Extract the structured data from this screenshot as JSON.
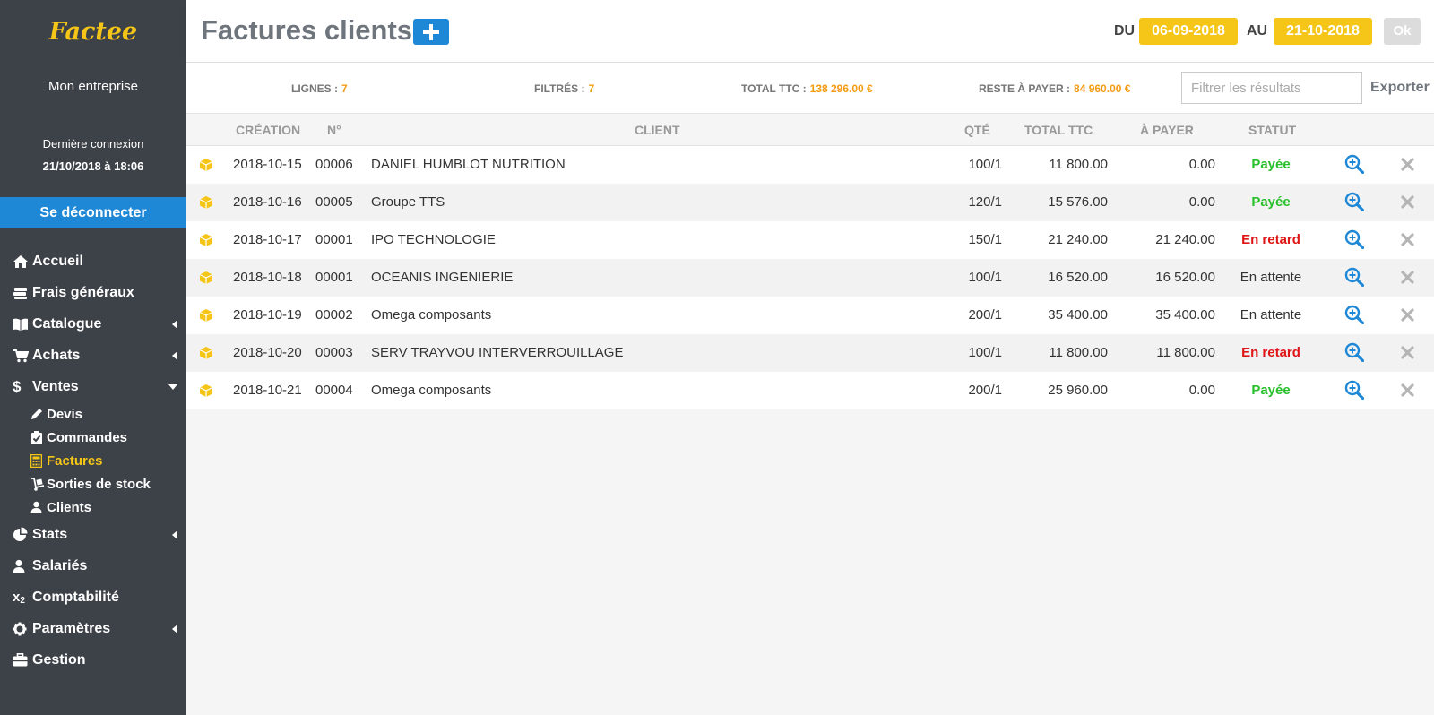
{
  "sidebar": {
    "brand": "Factee",
    "company": "Mon entreprise",
    "last_login_label": "Dernière connexion",
    "last_login_value": "21/10/2018 à 18:06",
    "logout_label": "Se déconnecter",
    "nav": {
      "accueil": "Accueil",
      "frais": "Frais généraux",
      "catalogue": "Catalogue",
      "achats": "Achats",
      "ventes": "Ventes",
      "devis": "Devis",
      "commandes": "Commandes",
      "factures": "Factures",
      "sorties": "Sorties de stock",
      "clients": "Clients",
      "stats": "Stats",
      "salaries": "Salariés",
      "comptabilite": "Comptabilité",
      "parametres": "Paramètres",
      "gestion": "Gestion"
    }
  },
  "header": {
    "title": "Factures clients",
    "du_label": "DU",
    "date_from": "06-09-2018",
    "au_label": "AU",
    "date_to": "21-10-2018",
    "ok_label": "Ok"
  },
  "summary": {
    "lignes_label": "LIGNES :",
    "lignes_value": "7",
    "filtres_label": "FILTRÉS :",
    "filtres_value": "7",
    "total_label": "TOTAL TTC :",
    "total_value": "138 296.00 €",
    "reste_label": "RESTE À PAYER :",
    "reste_value": "84 960.00 €",
    "filter_placeholder": "Filtrer les résultats",
    "export_label": "Exporter"
  },
  "table": {
    "headers": {
      "creation": "CRÉATION",
      "numero": "N°",
      "client": "CLIENT",
      "qte": "QTÉ",
      "total": "TOTAL TTC",
      "apayer": "À PAYER",
      "statut": "STATUT"
    },
    "rows": [
      {
        "date": "2018-10-15",
        "num": "00006",
        "client": "DANIEL HUMBLOT NUTRITION",
        "qte": "100/1",
        "total": "11 800.00",
        "apayer": "0.00",
        "statut": "Payée"
      },
      {
        "date": "2018-10-16",
        "num": "00005",
        "client": "Groupe TTS",
        "qte": "120/1",
        "total": "15 576.00",
        "apayer": "0.00",
        "statut": "Payée"
      },
      {
        "date": "2018-10-17",
        "num": "00001",
        "client": "IPO TECHNOLOGIE",
        "qte": "150/1",
        "total": "21 240.00",
        "apayer": "21 240.00",
        "statut": "En retard"
      },
      {
        "date": "2018-10-18",
        "num": "00001",
        "client": "OCEANIS INGENIERIE",
        "qte": "100/1",
        "total": "16 520.00",
        "apayer": "16 520.00",
        "statut": "En attente"
      },
      {
        "date": "2018-10-19",
        "num": "00002",
        "client": "Omega composants",
        "qte": "200/1",
        "total": "35 400.00",
        "apayer": "35 400.00",
        "statut": "En attente"
      },
      {
        "date": "2018-10-20",
        "num": "00003",
        "client": "SERV TRAYVOU INTERVERROUILLAGE",
        "qte": "100/1",
        "total": "11 800.00",
        "apayer": "11 800.00",
        "statut": "En retard"
      },
      {
        "date": "2018-10-21",
        "num": "00004",
        "client": "Omega composants",
        "qte": "200/1",
        "total": "25 960.00",
        "apayer": "0.00",
        "statut": "Payée"
      }
    ]
  },
  "colors": {
    "accent_yellow": "#f5c518",
    "accent_blue": "#1e88d6",
    "status_paid": "#27c02a",
    "status_late": "#e01515",
    "sidebar_bg": "#3d4248"
  }
}
